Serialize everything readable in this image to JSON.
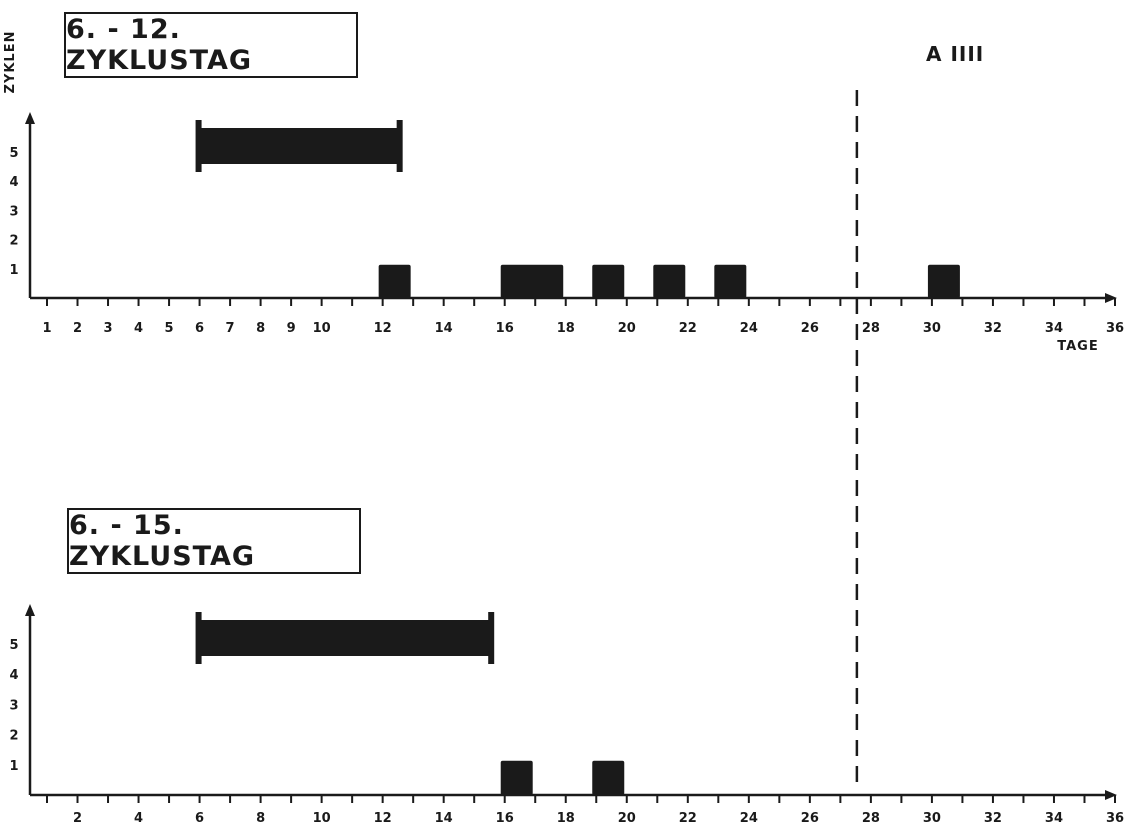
{
  "chart_data": [
    {
      "type": "bar",
      "title": "6. - 12. ZYKLUSTAG",
      "annotation": "A IIII",
      "ylabel": "ZYKLEN",
      "xlabel": "TAGE",
      "y_ticks": [
        "1",
        "2",
        "3",
        "4",
        "5"
      ],
      "x_ticks": [
        "1",
        "2",
        "3",
        "4",
        "5",
        "6",
        "7",
        "8",
        "9",
        "10",
        "12",
        "14",
        "16",
        "18",
        "20",
        "22",
        "24",
        "26",
        "28",
        "30",
        "32",
        "34",
        "36"
      ],
      "ylim": [
        0,
        5.5
      ],
      "xlim": [
        0.5,
        36.3
      ],
      "treatment": {
        "from": 6,
        "to": 12,
        "level": 5
      },
      "bars": [
        {
          "from": 12,
          "to": 12,
          "value": 1
        },
        {
          "from": 16,
          "to": 17,
          "value": 1
        },
        {
          "from": 19,
          "to": 19,
          "value": 1
        },
        {
          "from": 21,
          "to": 21,
          "value": 1
        },
        {
          "from": 23,
          "to": 23,
          "value": 1
        },
        {
          "from": 30,
          "to": 30,
          "value": 1
        }
      ],
      "reference_line_x": 28
    },
    {
      "type": "bar",
      "title": "6. - 15. ZYKLUSTAG",
      "ylabel": "",
      "xlabel": "",
      "y_ticks": [
        "1",
        "2",
        "3",
        "4",
        "5"
      ],
      "x_ticks": [
        "2",
        "4",
        "6",
        "8",
        "10",
        "12",
        "14",
        "16",
        "18",
        "20",
        "22",
        "24",
        "26",
        "28",
        "30",
        "32",
        "34",
        "36"
      ],
      "ylim": [
        0,
        5.5
      ],
      "xlim": [
        0.5,
        36.3
      ],
      "treatment": {
        "from": 6,
        "to": 15,
        "level": 5
      },
      "bars": [
        {
          "from": 16,
          "to": 16,
          "value": 1
        },
        {
          "from": 19,
          "to": 19,
          "value": 1
        }
      ],
      "reference_line_x": 28
    }
  ],
  "colors": {
    "ink": "#1a1a1a",
    "paper": "#ffffff"
  }
}
